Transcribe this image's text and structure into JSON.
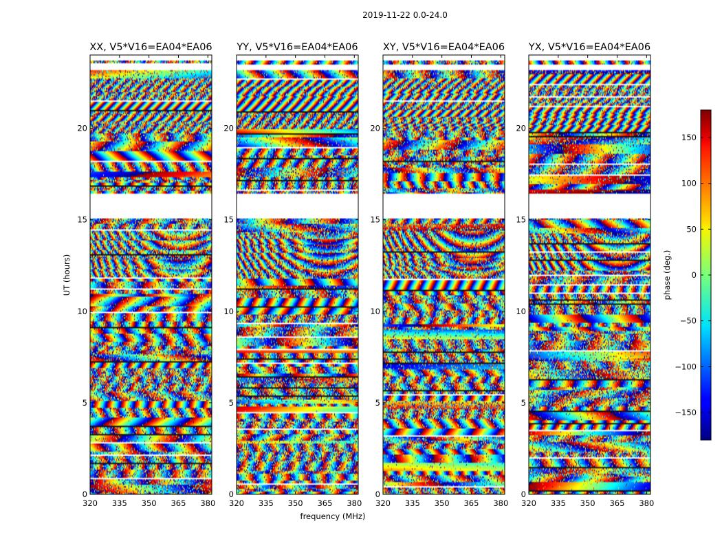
{
  "figure": {
    "title": "2019-11-22 0.0-24.0"
  },
  "chart_data": {
    "type": "heatmap",
    "title": "2019-11-22 0.0-24.0",
    "xlabel": "frequency (MHz)",
    "ylabel": "UT (hours)",
    "xlim": [
      320,
      382
    ],
    "ylim": [
      0,
      24
    ],
    "xticks": [
      "320",
      "335",
      "350",
      "365",
      "380"
    ],
    "xtick_values": [
      320,
      335,
      350,
      365,
      380
    ],
    "yticks": [
      "0",
      "5",
      "10",
      "15",
      "20"
    ],
    "ytick_values": [
      0,
      5,
      10,
      15,
      20
    ],
    "panels": [
      {
        "title": "XX, V5*V16=EA04*EA06",
        "pol": "XX"
      },
      {
        "title": "YY, V5*V16=EA04*EA06",
        "pol": "YY"
      },
      {
        "title": "XY, V5*V16=EA04*EA06",
        "pol": "XY"
      },
      {
        "title": "YX, V5*V16=EA04*EA06",
        "pol": "YX"
      }
    ],
    "gaps_hours": [
      [
        15.1,
        16.4
      ],
      [
        23.15,
        23.45
      ]
    ],
    "colorbar": {
      "label": "phase (deg.)",
      "range": [
        -180,
        180
      ],
      "ticks": [
        "150",
        "100",
        "50",
        "0",
        "−50",
        "−100",
        "−150"
      ],
      "tick_values": [
        150,
        100,
        50,
        0,
        -50,
        -100,
        -150
      ],
      "colormap": "jet"
    }
  }
}
